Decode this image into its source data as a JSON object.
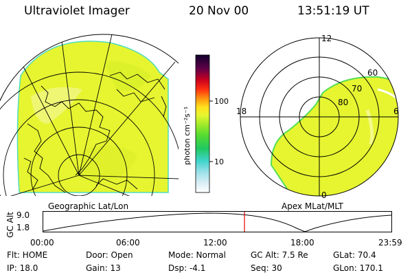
{
  "header": {
    "instrument": "Ultraviolet Imager",
    "date": "20 Nov 00",
    "time": "13:51:19 UT"
  },
  "colorbar": {
    "unit_label": "photon cm⁻²s⁻¹",
    "ticks": [
      "100",
      "10"
    ]
  },
  "polar_plot": {
    "labels": {
      "top": "12",
      "left": "18",
      "right": "6",
      "bottom": "0"
    },
    "lat_labels": [
      "60",
      "70",
      "80"
    ]
  },
  "timeline": {
    "left_caption": "Geographic Lat/Lon",
    "right_caption": "Apex MLat/MLT",
    "y_axis_label": "GC Alt",
    "y_ticks": [
      "9.0",
      "1.8"
    ],
    "x_ticks": [
      "00:00",
      "06:00",
      "12:00",
      "18:00",
      "23:59"
    ],
    "current_time_fraction": 0.578
  },
  "status": {
    "row1": [
      "Flt: HOME",
      "Door: Open",
      "Mode: Normal",
      "GC Alt: 7.5 Re",
      "GLat:  70.4"
    ],
    "row2": [
      "IP: 18.0",
      "Gain: 13",
      "Dsp:    -4.1",
      "Seq: 30",
      "GLon: 170.1"
    ]
  },
  "colors": {
    "marker": "#e00000",
    "aurora_main": "#e6f530",
    "aurora_edge": "#55dd55"
  }
}
